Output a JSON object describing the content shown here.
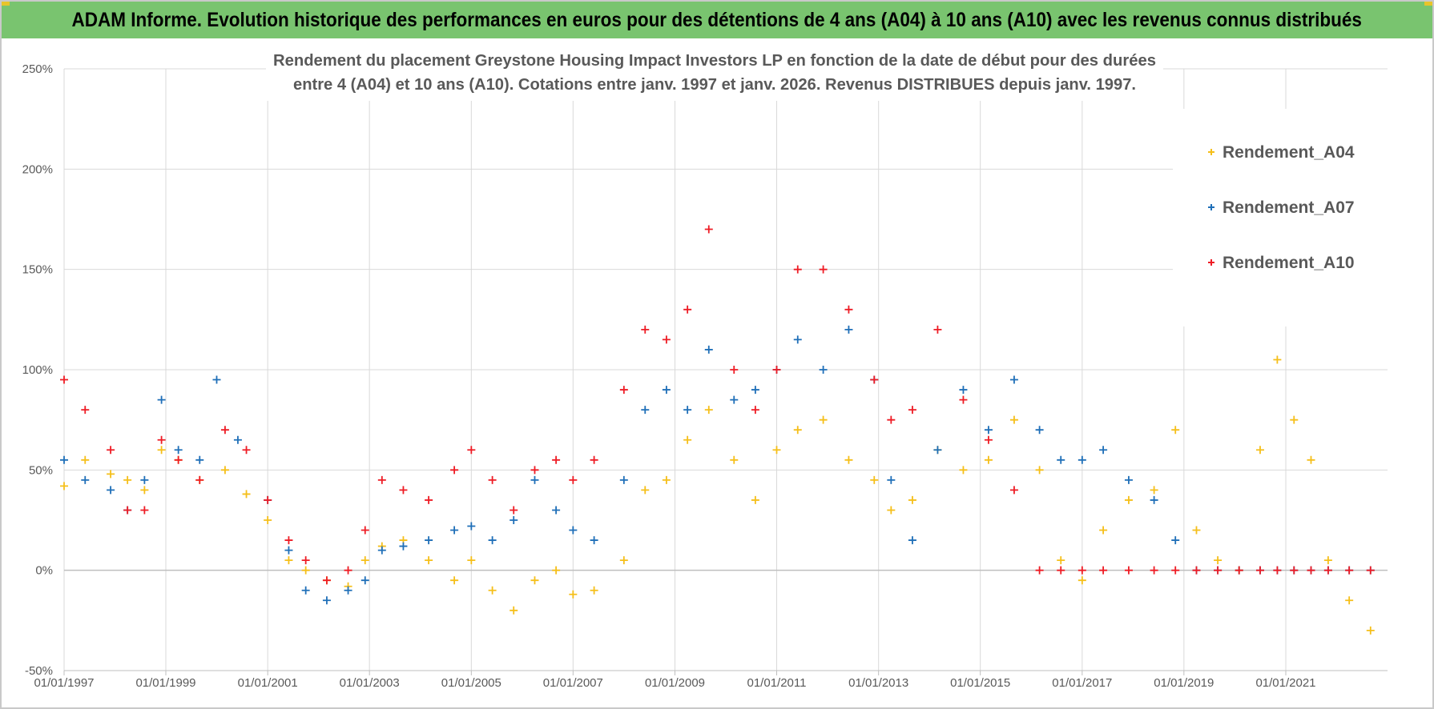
{
  "banner": {
    "title": "ADAM Informe. Evolution historique des performances en euros pour des détentions de 4 ans (A04) à 10 ans (A10) avec les revenus connus distribués"
  },
  "colors": {
    "banner_bg": "#79c46f",
    "Rendement_A04": "#f5bf1a",
    "Rendement_A07": "#1f6fb8",
    "Rendement_A10": "#ee1c25",
    "grid": "#d9d9d9"
  },
  "chart_data": {
    "type": "scatter",
    "title_lines": [
      "Rendement du placement Greystone Housing Impact Investors LP en fonction de la date de début pour des durées",
      "entre 4 (A04) et 10 ans (A10). Cotations entre janv. 1997 et janv. 2026. Revenus DISTRIBUES depuis janv. 1997."
    ],
    "xlabel": "",
    "ylabel": "",
    "x_tick_labels": [
      "01/01/1997",
      "01/01/1999",
      "01/01/2001",
      "01/01/2003",
      "01/01/2005",
      "01/01/2007",
      "01/01/2009",
      "01/01/2011",
      "01/01/2013",
      "01/01/2015",
      "01/01/2017",
      "01/01/2019",
      "01/01/2021"
    ],
    "xlim": [
      "1997-01-01",
      "2023-01-01"
    ],
    "y_tick_labels": [
      "-50%",
      "0%",
      "50%",
      "100%",
      "150%",
      "200%",
      "250%"
    ],
    "ylim": [
      -50,
      250
    ],
    "grid": true,
    "legend_position": "top-right",
    "marker": "+",
    "series": [
      {
        "name": "Rendement_A04",
        "points": [
          [
            "1997-01-01",
            42
          ],
          [
            "1997-06-01",
            55
          ],
          [
            "1997-12-01",
            48
          ],
          [
            "1998-04-01",
            45
          ],
          [
            "1998-08-01",
            40
          ],
          [
            "1998-12-01",
            60
          ],
          [
            "1999-04-01",
            55
          ],
          [
            "1999-09-01",
            45
          ],
          [
            "2000-03-01",
            50
          ],
          [
            "2000-08-01",
            38
          ],
          [
            "2001-01-01",
            25
          ],
          [
            "2001-06-01",
            5
          ],
          [
            "2001-10-01",
            0
          ],
          [
            "2002-03-01",
            -5
          ],
          [
            "2002-08-01",
            -8
          ],
          [
            "2002-12-01",
            5
          ],
          [
            "2003-04-01",
            12
          ],
          [
            "2003-09-01",
            15
          ],
          [
            "2004-03-01",
            5
          ],
          [
            "2004-09-01",
            -5
          ],
          [
            "2005-01-01",
            5
          ],
          [
            "2005-06-01",
            -10
          ],
          [
            "2005-11-01",
            -20
          ],
          [
            "2006-04-01",
            -5
          ],
          [
            "2006-09-01",
            0
          ],
          [
            "2007-01-01",
            -12
          ],
          [
            "2007-06-01",
            -10
          ],
          [
            "2008-01-01",
            5
          ],
          [
            "2008-06-01",
            40
          ],
          [
            "2008-11-01",
            45
          ],
          [
            "2009-04-01",
            65
          ],
          [
            "2009-09-01",
            80
          ],
          [
            "2010-03-01",
            55
          ],
          [
            "2010-08-01",
            35
          ],
          [
            "2011-01-01",
            60
          ],
          [
            "2011-06-01",
            70
          ],
          [
            "2011-12-01",
            75
          ],
          [
            "2012-06-01",
            55
          ],
          [
            "2012-12-01",
            45
          ],
          [
            "2013-04-01",
            30
          ],
          [
            "2013-09-01",
            35
          ],
          [
            "2014-03-01",
            60
          ],
          [
            "2014-09-01",
            50
          ],
          [
            "2015-03-01",
            55
          ],
          [
            "2015-09-01",
            75
          ],
          [
            "2016-03-01",
            50
          ],
          [
            "2016-08-01",
            5
          ],
          [
            "2017-01-01",
            -5
          ],
          [
            "2017-06-01",
            20
          ],
          [
            "2017-12-01",
            35
          ],
          [
            "2018-06-01",
            40
          ],
          [
            "2018-11-01",
            70
          ],
          [
            "2019-04-01",
            20
          ],
          [
            "2019-09-01",
            5
          ],
          [
            "2020-02-01",
            0
          ],
          [
            "2020-07-01",
            60
          ],
          [
            "2020-11-01",
            105
          ],
          [
            "2021-03-01",
            75
          ],
          [
            "2021-07-01",
            55
          ],
          [
            "2021-11-01",
            5
          ],
          [
            "2022-04-01",
            -15
          ],
          [
            "2022-09-01",
            -30
          ]
        ]
      },
      {
        "name": "Rendement_A07",
        "points": [
          [
            "1997-01-01",
            55
          ],
          [
            "1997-06-01",
            45
          ],
          [
            "1997-12-01",
            40
          ],
          [
            "1998-04-01",
            30
          ],
          [
            "1998-08-01",
            45
          ],
          [
            "1998-12-01",
            85
          ],
          [
            "1999-04-01",
            60
          ],
          [
            "1999-09-01",
            55
          ],
          [
            "2000-01-01",
            95
          ],
          [
            "2000-06-01",
            65
          ],
          [
            "2001-01-01",
            35
          ],
          [
            "2001-06-01",
            10
          ],
          [
            "2001-10-01",
            -10
          ],
          [
            "2002-03-01",
            -15
          ],
          [
            "2002-08-01",
            -10
          ],
          [
            "2002-12-01",
            -5
          ],
          [
            "2003-04-01",
            10
          ],
          [
            "2003-09-01",
            12
          ],
          [
            "2004-03-01",
            15
          ],
          [
            "2004-09-01",
            20
          ],
          [
            "2005-01-01",
            22
          ],
          [
            "2005-06-01",
            15
          ],
          [
            "2005-11-01",
            25
          ],
          [
            "2006-04-01",
            45
          ],
          [
            "2006-09-01",
            30
          ],
          [
            "2007-01-01",
            20
          ],
          [
            "2007-06-01",
            15
          ],
          [
            "2008-01-01",
            45
          ],
          [
            "2008-06-01",
            80
          ],
          [
            "2008-11-01",
            90
          ],
          [
            "2009-04-01",
            80
          ],
          [
            "2009-09-01",
            110
          ],
          [
            "2010-03-01",
            85
          ],
          [
            "2010-08-01",
            90
          ],
          [
            "2011-01-01",
            100
          ],
          [
            "2011-06-01",
            115
          ],
          [
            "2011-12-01",
            100
          ],
          [
            "2012-06-01",
            120
          ],
          [
            "2012-12-01",
            95
          ],
          [
            "2013-04-01",
            45
          ],
          [
            "2013-09-01",
            15
          ],
          [
            "2014-03-01",
            60
          ],
          [
            "2014-09-01",
            90
          ],
          [
            "2015-03-01",
            70
          ],
          [
            "2015-09-01",
            95
          ],
          [
            "2016-03-01",
            70
          ],
          [
            "2016-08-01",
            55
          ],
          [
            "2017-01-01",
            55
          ],
          [
            "2017-06-01",
            60
          ],
          [
            "2017-12-01",
            45
          ],
          [
            "2018-06-01",
            35
          ],
          [
            "2018-11-01",
            15
          ],
          [
            "2019-04-01",
            0
          ],
          [
            "2019-09-01",
            0
          ],
          [
            "2020-02-01",
            0
          ],
          [
            "2020-07-01",
            0
          ],
          [
            "2020-11-01",
            0
          ],
          [
            "2021-03-01",
            0
          ],
          [
            "2021-07-01",
            0
          ],
          [
            "2021-11-01",
            0
          ],
          [
            "2022-04-01",
            0
          ],
          [
            "2022-09-01",
            0
          ]
        ]
      },
      {
        "name": "Rendement_A10",
        "points": [
          [
            "1997-01-01",
            95
          ],
          [
            "1997-06-01",
            80
          ],
          [
            "1997-12-01",
            60
          ],
          [
            "1998-04-01",
            30
          ],
          [
            "1998-08-01",
            30
          ],
          [
            "1998-12-01",
            65
          ],
          [
            "1999-04-01",
            55
          ],
          [
            "1999-09-01",
            45
          ],
          [
            "2000-03-01",
            70
          ],
          [
            "2000-08-01",
            60
          ],
          [
            "2001-01-01",
            35
          ],
          [
            "2001-06-01",
            15
          ],
          [
            "2001-10-01",
            5
          ],
          [
            "2002-03-01",
            -5
          ],
          [
            "2002-08-01",
            0
          ],
          [
            "2002-12-01",
            20
          ],
          [
            "2003-04-01",
            45
          ],
          [
            "2003-09-01",
            40
          ],
          [
            "2004-03-01",
            35
          ],
          [
            "2004-09-01",
            50
          ],
          [
            "2005-01-01",
            60
          ],
          [
            "2005-06-01",
            45
          ],
          [
            "2005-11-01",
            30
          ],
          [
            "2006-04-01",
            50
          ],
          [
            "2006-09-01",
            55
          ],
          [
            "2007-01-01",
            45
          ],
          [
            "2007-06-01",
            55
          ],
          [
            "2008-01-01",
            90
          ],
          [
            "2008-06-01",
            120
          ],
          [
            "2008-11-01",
            115
          ],
          [
            "2009-04-01",
            130
          ],
          [
            "2009-09-01",
            170
          ],
          [
            "2010-03-01",
            100
          ],
          [
            "2010-08-01",
            80
          ],
          [
            "2011-01-01",
            100
          ],
          [
            "2011-06-01",
            150
          ],
          [
            "2011-12-01",
            150
          ],
          [
            "2012-06-01",
            130
          ],
          [
            "2012-12-01",
            95
          ],
          [
            "2013-04-01",
            75
          ],
          [
            "2013-09-01",
            80
          ],
          [
            "2014-03-01",
            120
          ],
          [
            "2014-09-01",
            85
          ],
          [
            "2015-03-01",
            65
          ],
          [
            "2015-09-01",
            40
          ],
          [
            "2016-03-01",
            0
          ],
          [
            "2016-08-01",
            0
          ],
          [
            "2017-01-01",
            0
          ],
          [
            "2017-06-01",
            0
          ],
          [
            "2017-12-01",
            0
          ],
          [
            "2018-06-01",
            0
          ],
          [
            "2018-11-01",
            0
          ],
          [
            "2019-04-01",
            0
          ],
          [
            "2019-09-01",
            0
          ],
          [
            "2020-02-01",
            0
          ],
          [
            "2020-07-01",
            0
          ],
          [
            "2020-11-01",
            0
          ],
          [
            "2021-03-01",
            0
          ],
          [
            "2021-07-01",
            0
          ],
          [
            "2021-11-01",
            0
          ],
          [
            "2022-04-01",
            0
          ],
          [
            "2022-09-01",
            0
          ]
        ]
      }
    ]
  }
}
